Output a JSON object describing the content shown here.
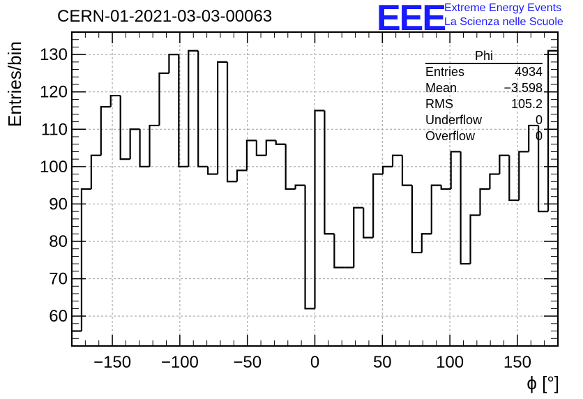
{
  "header": {
    "title": "CERN-01-2021-03-03-00063",
    "logo_text": "EEE",
    "logo_line1": "Extreme Energy Events",
    "logo_line2": "La Scienza nelle Scuole"
  },
  "stats_box": {
    "title": "Phi",
    "rows": [
      {
        "label": "Entries",
        "value": "4934"
      },
      {
        "label": "Mean",
        "value": "−3.598"
      },
      {
        "label": "RMS",
        "value": "105.2"
      },
      {
        "label": "Underflow",
        "value": "0"
      },
      {
        "label": "Overflow",
        "value": "0"
      }
    ]
  },
  "chart_data": {
    "type": "bar",
    "title": "CERN-01-2021-03-03-00063",
    "xlabel": "ϕ [°]",
    "ylabel": "Entries/bin",
    "xlim": [
      -180,
      180
    ],
    "ylim": [
      52,
      136
    ],
    "bin_width": 7.2,
    "x_ticks": [
      -150,
      -100,
      -50,
      0,
      50,
      100,
      150
    ],
    "x_tick_labels": [
      "−150",
      "−100",
      "−50",
      "0",
      "50",
      "100",
      "150"
    ],
    "y_ticks": [
      60,
      70,
      80,
      90,
      100,
      110,
      120,
      130
    ],
    "y_tick_labels": [
      "60",
      "70",
      "80",
      "90",
      "100",
      "110",
      "120",
      "130"
    ],
    "grid": true,
    "line_color": "#000000",
    "values": [
      56,
      94,
      103,
      116,
      119,
      102,
      110,
      100,
      111,
      125,
      130,
      100,
      131,
      100,
      98,
      128,
      96,
      99,
      107,
      103,
      107,
      106,
      94,
      95,
      62,
      115,
      82,
      73,
      73,
      89,
      81,
      98,
      100,
      103,
      95,
      77,
      82,
      95,
      94,
      104,
      74,
      87,
      94,
      98,
      103,
      91,
      104,
      111,
      88,
      131
    ]
  }
}
